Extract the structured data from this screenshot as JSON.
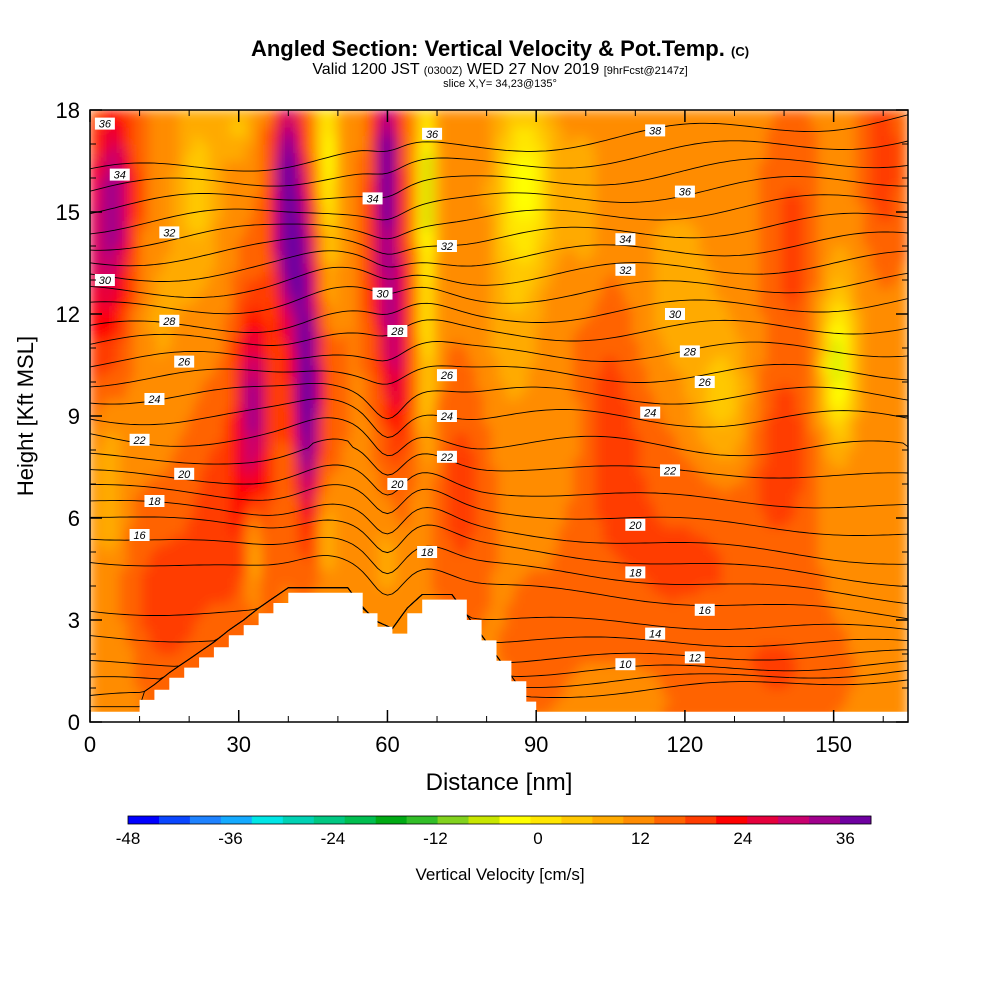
{
  "header": {
    "title": "Angled Section: Vertical Velocity & Pot.Temp.",
    "title_unit": "(C)",
    "valid_prefix": "Valid 1200 JST",
    "valid_zulu": "(0300Z)",
    "valid_date": "WED 27 Nov 2019",
    "forecast": "[9hrFcst@2147z]",
    "slice": "slice X,Y= 34,23@135°"
  },
  "chart_data": {
    "type": "heatmap",
    "xlabel": "Distance [nm]",
    "ylabel": "Height [Kft MSL]",
    "xlim": [
      0,
      165
    ],
    "ylim": [
      0,
      18
    ],
    "x_ticks": [
      0,
      30,
      60,
      90,
      120,
      150
    ],
    "y_ticks": [
      0,
      3,
      6,
      9,
      12,
      15,
      18
    ],
    "colorbar": {
      "label": "Vertical Velocity [cm/s]",
      "min": -48,
      "max": 39,
      "step": 3,
      "tick_labels": [
        -48,
        -36,
        -24,
        -12,
        0,
        12,
        24,
        36
      ],
      "colors": [
        "#0000ff",
        "#0a46ff",
        "#1e82ff",
        "#14aaff",
        "#00e6e6",
        "#00d2b4",
        "#00c882",
        "#00be50",
        "#00aa14",
        "#32be28",
        "#82d21e",
        "#c8e600",
        "#ffff00",
        "#ffe600",
        "#ffc800",
        "#ffaa00",
        "#ff8c00",
        "#ff6400",
        "#ff3c00",
        "#ff0000",
        "#e6003c",
        "#c8006e",
        "#a0008c",
        "#6e00a0"
      ]
    },
    "terrain_profile": {
      "x": [
        0,
        10,
        10,
        13,
        16,
        19,
        22,
        25,
        28,
        31,
        34,
        37,
        40,
        43,
        46,
        52,
        55,
        58,
        61,
        64,
        67,
        73,
        76,
        79,
        82,
        85,
        88,
        90,
        165
      ],
      "h": [
        0.3,
        0.3,
        0.65,
        0.95,
        1.3,
        1.6,
        1.9,
        2.2,
        2.55,
        2.85,
        3.2,
        3.5,
        3.8,
        3.8,
        3.8,
        3.8,
        3.2,
        2.8,
        2.6,
        3.2,
        3.6,
        3.6,
        3.0,
        2.4,
        1.8,
        1.2,
        0.6,
        0.3,
        0.3
      ]
    },
    "velocity_features": [
      {
        "x": 5,
        "y": 15.5,
        "sx": 4,
        "sy": 2.8,
        "value": 14
      },
      {
        "x": 2,
        "y": 13.0,
        "sx": 6,
        "sy": 3.5,
        "value": 8
      },
      {
        "x": 40,
        "y": 15.8,
        "sx": 2.6,
        "sy": 2.8,
        "value": 22
      },
      {
        "x": 42,
        "y": 14.0,
        "sx": 4.5,
        "sy": 2.5,
        "value": 12
      },
      {
        "x": 33,
        "y": 9.5,
        "sx": 3.4,
        "sy": 2.8,
        "value": 16
      },
      {
        "x": 44,
        "y": 8.8,
        "sx": 2.0,
        "sy": 3.2,
        "value": 18
      },
      {
        "x": 44,
        "y": 10.5,
        "sx": 5.0,
        "sy": 3.0,
        "value": 10
      },
      {
        "x": 60,
        "y": 16.5,
        "sx": 2.6,
        "sy": 2.2,
        "value": 22
      },
      {
        "x": 60,
        "y": 13.0,
        "sx": 3.5,
        "sy": 2.5,
        "value": 12
      },
      {
        "x": 62,
        "y": 10.5,
        "sx": 3.0,
        "sy": 3.0,
        "value": 10
      },
      {
        "x": 28,
        "y": 6.0,
        "sx": 8.0,
        "sy": 3.0,
        "value": 6
      },
      {
        "x": 48,
        "y": 16.5,
        "sx": 2.2,
        "sy": 2.6,
        "value": -14
      },
      {
        "x": 48,
        "y": 12.8,
        "sx": 2.5,
        "sy": 2.0,
        "value": -6
      },
      {
        "x": 68,
        "y": 16.0,
        "sx": 1.8,
        "sy": 3.2,
        "value": -15
      },
      {
        "x": 68,
        "y": 11.0,
        "sx": 2.0,
        "sy": 3.5,
        "value": -8
      },
      {
        "x": 88,
        "y": 15.8,
        "sx": 6.0,
        "sy": 2.8,
        "value": -13
      },
      {
        "x": 85,
        "y": 11.5,
        "sx": 5.0,
        "sy": 2.5,
        "value": -4
      },
      {
        "x": 22,
        "y": 15.8,
        "sx": 4.5,
        "sy": 3.0,
        "value": -7
      },
      {
        "x": 30,
        "y": 17.5,
        "sx": 3.0,
        "sy": 1.0,
        "value": -6
      },
      {
        "x": 4,
        "y": 7.0,
        "sx": 3.0,
        "sy": 2.5,
        "value": -6
      },
      {
        "x": 14,
        "y": 12.0,
        "sx": 6.0,
        "sy": 3.0,
        "value": -3
      },
      {
        "x": 33,
        "y": 5.2,
        "sx": 1.5,
        "sy": 1.5,
        "value": -10
      },
      {
        "x": 48,
        "y": 5.5,
        "sx": 2.0,
        "sy": 1.5,
        "value": -5
      },
      {
        "x": 60,
        "y": 4.8,
        "sx": 2.0,
        "sy": 1.3,
        "value": -4
      },
      {
        "x": 75,
        "y": 6.8,
        "sx": 5.0,
        "sy": 3.0,
        "value": 5
      },
      {
        "x": 95,
        "y": 8.5,
        "sx": 7.0,
        "sy": 2.0,
        "value": -3
      },
      {
        "x": 105,
        "y": 9.0,
        "sx": 8.0,
        "sy": 4.0,
        "value": 5
      },
      {
        "x": 100,
        "y": 15.0,
        "sx": 4.0,
        "sy": 3.0,
        "value": -4
      },
      {
        "x": 118,
        "y": 12.5,
        "sx": 10.0,
        "sy": 3.5,
        "value": -4
      },
      {
        "x": 128,
        "y": 9.3,
        "sx": 6.0,
        "sy": 2.2,
        "value": -7
      },
      {
        "x": 140,
        "y": 8.0,
        "sx": 6.0,
        "sy": 2.5,
        "value": 5
      },
      {
        "x": 151,
        "y": 10.5,
        "sx": 3.0,
        "sy": 2.0,
        "value": -12
      },
      {
        "x": 151,
        "y": 11.0,
        "sx": 5.0,
        "sy": 4.0,
        "value": -4
      },
      {
        "x": 142,
        "y": 14.0,
        "sx": 5.0,
        "sy": 3.0,
        "value": 5
      },
      {
        "x": 160,
        "y": 16.5,
        "sx": 4.0,
        "sy": 2.5,
        "value": 6
      },
      {
        "x": 122,
        "y": 4.5,
        "sx": 18.0,
        "sy": 4.0,
        "value": 4
      },
      {
        "x": 140,
        "y": 1.5,
        "sx": 10.0,
        "sy": 1.5,
        "value": 3
      },
      {
        "x": 110,
        "y": 1.0,
        "sx": 8.0,
        "sy": 1.0,
        "value": -2
      },
      {
        "x": 125,
        "y": 2.6,
        "sx": 6.0,
        "sy": 1.0,
        "value": -2
      },
      {
        "x": 90,
        "y": 2.2,
        "sx": 5.0,
        "sy": 1.5,
        "value": 3
      },
      {
        "x": 15,
        "y": 3.5,
        "sx": 8.0,
        "sy": 2.5,
        "value": 5
      },
      {
        "x": 5,
        "y": 1.5,
        "sx": 4.0,
        "sy": 1.5,
        "value": -3
      }
    ],
    "isentropes": {
      "levels": [
        10,
        11,
        12,
        13,
        14,
        15,
        16,
        17,
        18,
        19,
        20,
        21,
        22,
        23,
        24,
        25,
        26,
        27,
        28,
        29,
        30,
        31,
        32,
        33,
        34,
        35,
        36,
        37,
        38
      ],
      "left_heights_kft": [
        0.2,
        0.7,
        1.2,
        1.7,
        2.5,
        3.3,
        4.8,
        5.5,
        6.1,
        6.5,
        6.9,
        7.3,
        7.8,
        8.4,
        9.0,
        9.6,
        10.1,
        10.6,
        11.1,
        11.5,
        12.1,
        12.6,
        13.1,
        13.6,
        14.1,
        14.6,
        15.1,
        15.6,
        16.1
      ],
      "right_heights_kft": [
        1.3,
        1.5,
        1.7,
        2.0,
        2.3,
        2.7,
        3.1,
        3.6,
        4.1,
        4.7,
        5.5,
        6.3,
        7.2,
        8.0,
        8.9,
        9.6,
        10.3,
        11.0,
        11.7,
        12.4,
        13.0,
        13.6,
        14.2,
        14.8,
        15.4,
        16.0,
        16.6,
        17.2,
        17.8
      ],
      "labels": [
        {
          "text": "10",
          "x": 108,
          "y": 1.7
        },
        {
          "text": "12",
          "x": 122,
          "y": 1.9
        },
        {
          "text": "14",
          "x": 114,
          "y": 2.6
        },
        {
          "text": "16",
          "x": 124,
          "y": 3.3
        },
        {
          "text": "18",
          "x": 110,
          "y": 4.4
        },
        {
          "text": "20",
          "x": 110,
          "y": 5.8
        },
        {
          "text": "22",
          "x": 117,
          "y": 7.4
        },
        {
          "text": "24",
          "x": 113,
          "y": 9.1
        },
        {
          "text": "26",
          "x": 124,
          "y": 10.0
        },
        {
          "text": "28",
          "x": 121,
          "y": 10.9
        },
        {
          "text": "30",
          "x": 118,
          "y": 12.0
        },
        {
          "text": "32",
          "x": 108,
          "y": 13.3
        },
        {
          "text": "34",
          "x": 108,
          "y": 14.2
        },
        {
          "text": "36",
          "x": 120,
          "y": 15.6
        },
        {
          "text": "38",
          "x": 114,
          "y": 17.4
        },
        {
          "text": "36",
          "x": 69,
          "y": 17.3
        },
        {
          "text": "34",
          "x": 57,
          "y": 15.4
        },
        {
          "text": "32",
          "x": 72,
          "y": 14.0
        },
        {
          "text": "30",
          "x": 59,
          "y": 12.6
        },
        {
          "text": "28",
          "x": 62,
          "y": 11.5
        },
        {
          "text": "26",
          "x": 72,
          "y": 10.2
        },
        {
          "text": "24",
          "x": 72,
          "y": 9.0
        },
        {
          "text": "22",
          "x": 72,
          "y": 7.8
        },
        {
          "text": "20",
          "x": 62,
          "y": 7.0
        },
        {
          "text": "18",
          "x": 68,
          "y": 5.0
        },
        {
          "text": "36",
          "x": 3,
          "y": 17.6
        },
        {
          "text": "34",
          "x": 6,
          "y": 16.1
        },
        {
          "text": "32",
          "x": 16,
          "y": 14.4
        },
        {
          "text": "30",
          "x": 3,
          "y": 13.0
        },
        {
          "text": "28",
          "x": 16,
          "y": 11.8
        },
        {
          "text": "26",
          "x": 19,
          "y": 10.6
        },
        {
          "text": "24",
          "x": 13,
          "y": 9.5
        },
        {
          "text": "22",
          "x": 10,
          "y": 8.3
        },
        {
          "text": "20",
          "x": 19,
          "y": 7.3
        },
        {
          "text": "18",
          "x": 13,
          "y": 6.5
        },
        {
          "text": "16",
          "x": 10,
          "y": 5.5
        }
      ]
    }
  }
}
